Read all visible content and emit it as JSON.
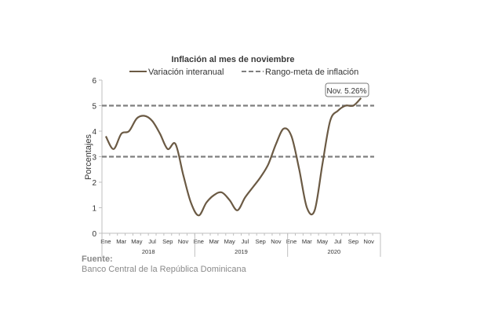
{
  "chart_data": {
    "type": "line",
    "title": "Inflación al mes de noviembre",
    "xlabel": "",
    "ylabel": "Porcentajes",
    "ylim": [
      0,
      6
    ],
    "yticks": [
      0,
      1,
      2,
      3,
      4,
      5,
      6
    ],
    "grid": false,
    "legend_position": "top",
    "month_labels": [
      "Ene",
      "Mar",
      "May",
      "Jul",
      "Sep",
      "Nov"
    ],
    "years": [
      "2018",
      "2019",
      "2020"
    ],
    "series": [
      {
        "name": "Variación interanual",
        "color": "#6b5a44",
        "values": [
          3.8,
          3.3,
          3.9,
          4.0,
          4.5,
          4.6,
          4.4,
          3.9,
          3.3,
          3.5,
          2.3,
          1.2,
          0.7,
          1.2,
          1.5,
          1.6,
          1.3,
          0.9,
          1.4,
          1.8,
          2.2,
          2.7,
          3.5,
          4.1,
          3.8,
          2.5,
          1.0,
          0.9,
          2.7,
          4.4,
          4.8,
          5.0,
          5.0,
          5.3
        ]
      },
      {
        "name": "Rango-meta de inflación",
        "color": "#7f7f7f",
        "style": "dashed",
        "values": [
          3,
          5
        ]
      }
    ],
    "annotation": {
      "text": "Nov. 5.26%",
      "x_index": 33,
      "value": 5.26
    }
  },
  "source": {
    "label": "Fuente:",
    "text": "Banco Central de la República Dominicana"
  }
}
